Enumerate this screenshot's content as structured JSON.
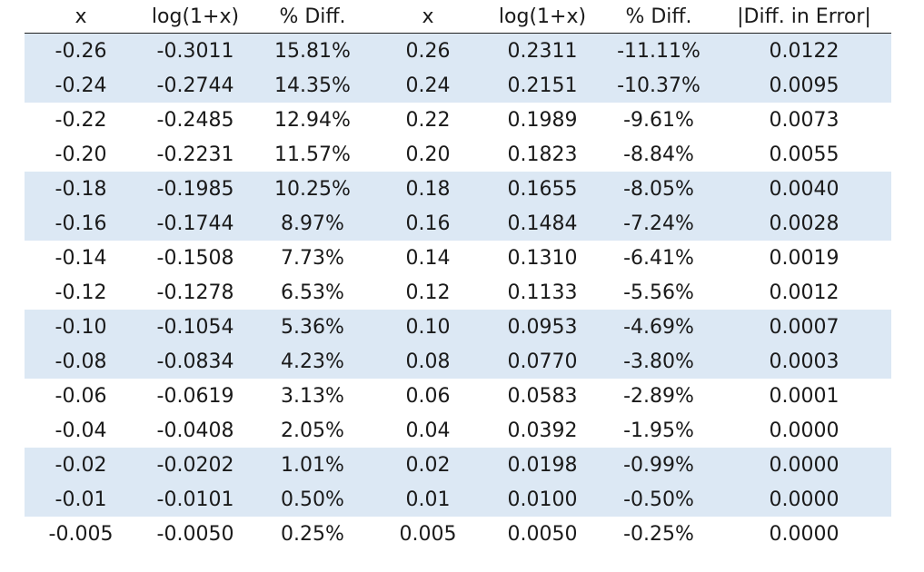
{
  "table": {
    "headers": [
      "x",
      "log(1+x)",
      "% Diff.",
      "x",
      "log(1+x)",
      "% Diff.",
      "|Diff. in Error|"
    ],
    "rows": [
      [
        "-0.26",
        "-0.3011",
        "15.81%",
        "0.26",
        "0.2311",
        "-11.11%",
        "0.0122"
      ],
      [
        "-0.24",
        "-0.2744",
        "14.35%",
        "0.24",
        "0.2151",
        "-10.37%",
        "0.0095"
      ],
      [
        "-0.22",
        "-0.2485",
        "12.94%",
        "0.22",
        "0.1989",
        "-9.61%",
        "0.0073"
      ],
      [
        "-0.20",
        "-0.2231",
        "11.57%",
        "0.20",
        "0.1823",
        "-8.84%",
        "0.0055"
      ],
      [
        "-0.18",
        "-0.1985",
        "10.25%",
        "0.18",
        "0.1655",
        "-8.05%",
        "0.0040"
      ],
      [
        "-0.16",
        "-0.1744",
        "8.97%",
        "0.16",
        "0.1484",
        "-7.24%",
        "0.0028"
      ],
      [
        "-0.14",
        "-0.1508",
        "7.73%",
        "0.14",
        "0.1310",
        "-6.41%",
        "0.0019"
      ],
      [
        "-0.12",
        "-0.1278",
        "6.53%",
        "0.12",
        "0.1133",
        "-5.56%",
        "0.0012"
      ],
      [
        "-0.10",
        "-0.1054",
        "5.36%",
        "0.10",
        "0.0953",
        "-4.69%",
        "0.0007"
      ],
      [
        "-0.08",
        "-0.0834",
        "4.23%",
        "0.08",
        "0.0770",
        "-3.80%",
        "0.0003"
      ],
      [
        "-0.06",
        "-0.0619",
        "3.13%",
        "0.06",
        "0.0583",
        "-2.89%",
        "0.0001"
      ],
      [
        "-0.04",
        "-0.0408",
        "2.05%",
        "0.04",
        "0.0392",
        "-1.95%",
        "0.0000"
      ],
      [
        "-0.02",
        "-0.0202",
        "1.01%",
        "0.02",
        "0.0198",
        "-0.99%",
        "0.0000"
      ],
      [
        "-0.01",
        "-0.0101",
        "0.50%",
        "0.01",
        "0.0100",
        "-0.50%",
        "0.0000"
      ],
      [
        "-0.005",
        "-0.0050",
        "0.25%",
        "0.005",
        "0.0050",
        "-0.25%",
        "0.0000"
      ]
    ]
  },
  "colors": {
    "band": "#dce8f4",
    "text": "#1a1a1a",
    "rule": "#222222"
  }
}
